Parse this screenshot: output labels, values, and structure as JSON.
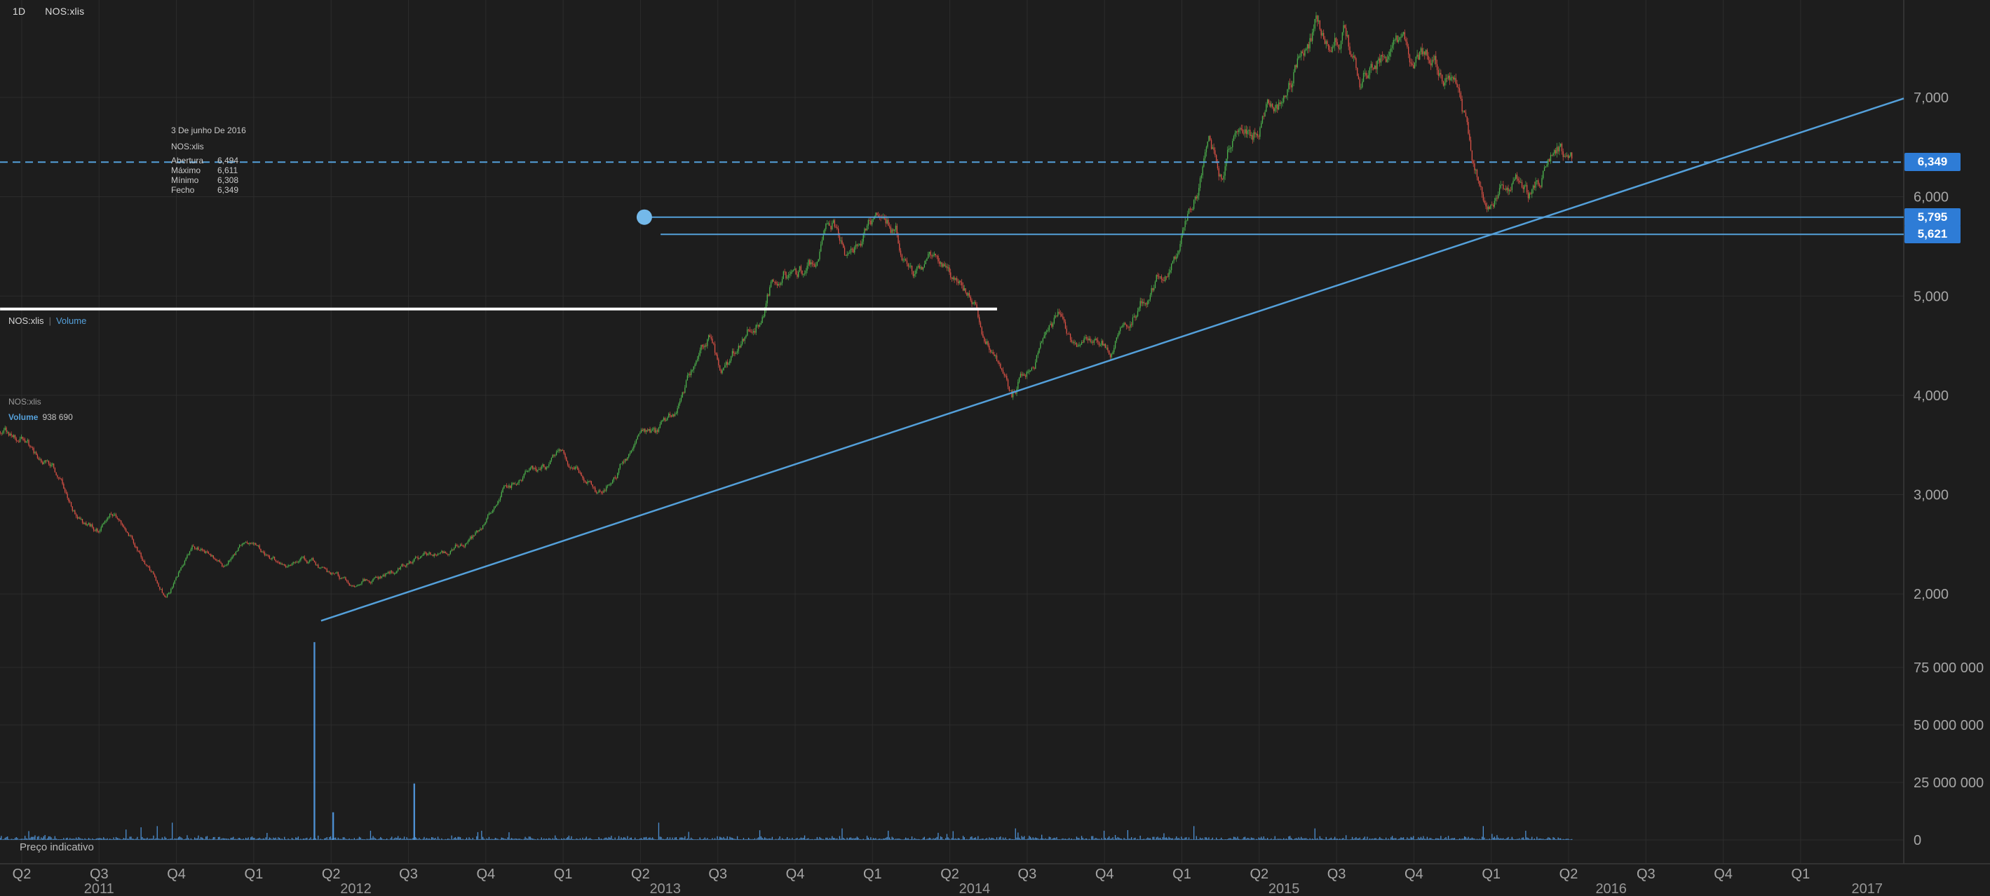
{
  "header": {
    "timeframe": "1D",
    "symbol": "NOS:xlis"
  },
  "tooltip": {
    "date": "3 De junho De 2016",
    "symbol": "NOS:xlis",
    "rows": [
      {
        "label": "Abertura",
        "value": "6,494"
      },
      {
        "label": "Máximo",
        "value": "6,611"
      },
      {
        "label": "Mínimo",
        "value": "6,308"
      },
      {
        "label": "Fecho",
        "value": "6,349"
      }
    ]
  },
  "pane_legend": {
    "symbol": "NOS:xlis",
    "separator": "|",
    "volume": "Volume"
  },
  "volume_legend": {
    "symbol": "NOS:xlis",
    "label": "Volume",
    "value": "938 690"
  },
  "footer_note": "Preço indicativo",
  "colors": {
    "background": "#1d1d1d",
    "grid": "#2c2c2c",
    "axis_line": "#3a3a3a",
    "axis_text": "#a6a6a6",
    "up": "#4db34d",
    "down": "#de5246",
    "volume_bar": "#4d8fd1",
    "blue_line": "#54a0da",
    "handle": "#74b9ea",
    "badge": "#2e7cd6",
    "white_line": "#ffffff"
  },
  "price_axis": {
    "ticks": [
      {
        "value": 7000,
        "label": "7,000"
      },
      {
        "value": 6000,
        "label": "6,000"
      },
      {
        "value": 5000,
        "label": "5,000"
      },
      {
        "value": 4000,
        "label": "4,000"
      },
      {
        "value": 3000,
        "label": "3,000"
      },
      {
        "value": 2000,
        "label": "2,000"
      }
    ],
    "badges": [
      {
        "price": 6349,
        "label": "6,349",
        "style": "current-dashed"
      },
      {
        "price": 5795,
        "label": "5,795",
        "style": "line"
      },
      {
        "price": 5621,
        "label": "5,621",
        "style": "line"
      }
    ]
  },
  "volume_axis": {
    "ticks": [
      {
        "value": 75000000,
        "label": "75 000 000"
      },
      {
        "value": 50000000,
        "label": "50 000 000"
      },
      {
        "value": 25000000,
        "label": "25 000 000"
      },
      {
        "value": 0,
        "label": "0"
      }
    ]
  },
  "time_axis": {
    "quarters": [
      {
        "q": 0,
        "label": "Q2"
      },
      {
        "q": 1,
        "label": "Q3"
      },
      {
        "q": 2,
        "label": "Q4"
      },
      {
        "q": 3,
        "label": "Q1"
      },
      {
        "q": 4,
        "label": "Q2"
      },
      {
        "q": 5,
        "label": "Q3"
      },
      {
        "q": 6,
        "label": "Q4"
      },
      {
        "q": 7,
        "label": "Q1"
      },
      {
        "q": 8,
        "label": "Q2"
      },
      {
        "q": 9,
        "label": "Q3"
      },
      {
        "q": 10,
        "label": "Q4"
      },
      {
        "q": 11,
        "label": "Q1"
      },
      {
        "q": 12,
        "label": "Q2"
      },
      {
        "q": 13,
        "label": "Q3"
      },
      {
        "q": 14,
        "label": "Q4"
      },
      {
        "q": 15,
        "label": "Q1"
      },
      {
        "q": 16,
        "label": "Q2"
      },
      {
        "q": 17,
        "label": "Q3"
      },
      {
        "q": 18,
        "label": "Q4"
      },
      {
        "q": 19,
        "label": "Q1"
      },
      {
        "q": 20,
        "label": "Q2"
      },
      {
        "q": 21,
        "label": "Q3"
      },
      {
        "q": 22,
        "label": "Q4"
      },
      {
        "q": 23,
        "label": "Q1"
      }
    ],
    "years": [
      {
        "q": 1.0,
        "label": "2011"
      },
      {
        "q": 4.32,
        "label": "2012"
      },
      {
        "q": 8.32,
        "label": "2013"
      },
      {
        "q": 12.32,
        "label": "2014"
      },
      {
        "q": 16.32,
        "label": "2015"
      },
      {
        "q": 20.55,
        "label": "2016"
      },
      {
        "q": 23.86,
        "label": "2017"
      }
    ]
  },
  "chart_data": {
    "type": "candlestick",
    "symbol": "NOS:xlis",
    "interval": "1D",
    "note": "Prices are EUR with comma as decimal separator; internal values are price x 1000 (e.g. 6349 = 6,349). x unit is quarter index, 0 = Q2 2011 tick.",
    "visible_price_range": [
      1800,
      7985
    ],
    "last_candle": {
      "date": "3 De junho De 2016",
      "open": 6494,
      "high": 6611,
      "low": 6308,
      "close": 6349,
      "volume": 938690
    },
    "price_anchors": [
      [
        -0.28,
        3640
      ],
      [
        0,
        3560
      ],
      [
        0.2,
        3350
      ],
      [
        0.4,
        3300
      ],
      [
        0.6,
        2950
      ],
      [
        0.8,
        2700
      ],
      [
        1.0,
        2620
      ],
      [
        1.15,
        2820
      ],
      [
        1.4,
        2580
      ],
      [
        1.6,
        2300
      ],
      [
        1.85,
        2000
      ],
      [
        1.95,
        2100
      ],
      [
        2.2,
        2480
      ],
      [
        2.4,
        2420
      ],
      [
        2.6,
        2270
      ],
      [
        2.8,
        2450
      ],
      [
        3.0,
        2530
      ],
      [
        3.2,
        2350
      ],
      [
        3.4,
        2280
      ],
      [
        3.6,
        2350
      ],
      [
        3.8,
        2290
      ],
      [
        4.0,
        2180
      ],
      [
        4.3,
        2030
      ],
      [
        4.55,
        2160
      ],
      [
        4.8,
        2230
      ],
      [
        5.1,
        2350
      ],
      [
        5.45,
        2400
      ],
      [
        5.7,
        2520
      ],
      [
        5.95,
        2650
      ],
      [
        6.2,
        3050
      ],
      [
        6.5,
        3180
      ],
      [
        6.8,
        3300
      ],
      [
        6.95,
        3420
      ],
      [
        7.2,
        3300
      ],
      [
        7.45,
        3050
      ],
      [
        7.6,
        3180
      ],
      [
        7.85,
        3440
      ],
      [
        8.0,
        3740
      ],
      [
        8.2,
        3620
      ],
      [
        8.45,
        3760
      ],
      [
        8.6,
        4100
      ],
      [
        8.9,
        4550
      ],
      [
        9.05,
        4200
      ],
      [
        9.3,
        4500
      ],
      [
        9.55,
        4850
      ],
      [
        9.7,
        5150
      ],
      [
        9.85,
        5280
      ],
      [
        10.0,
        5100
      ],
      [
        10.2,
        5300
      ],
      [
        10.48,
        5680
      ],
      [
        10.7,
        5300
      ],
      [
        11.05,
        5750
      ],
      [
        11.3,
        5600
      ],
      [
        11.55,
        5150
      ],
      [
        11.8,
        5300
      ],
      [
        12.0,
        5200
      ],
      [
        12.3,
        4850
      ],
      [
        12.55,
        4450
      ],
      [
        12.8,
        3980
      ],
      [
        13.0,
        4300
      ],
      [
        13.2,
        4550
      ],
      [
        13.45,
        4840
      ],
      [
        13.65,
        4480
      ],
      [
        13.9,
        4650
      ],
      [
        14.1,
        4500
      ],
      [
        14.4,
        4900
      ],
      [
        14.7,
        5200
      ],
      [
        14.95,
        5500
      ],
      [
        15.2,
        6100
      ],
      [
        15.35,
        6750
      ],
      [
        15.5,
        6350
      ],
      [
        15.7,
        6650
      ],
      [
        15.9,
        6500
      ],
      [
        16.1,
        6950
      ],
      [
        16.3,
        7050
      ],
      [
        16.5,
        7400
      ],
      [
        16.75,
        7750
      ],
      [
        16.95,
        7550
      ],
      [
        17.1,
        7650
      ],
      [
        17.3,
        7200
      ],
      [
        17.55,
        7500
      ],
      [
        17.75,
        7600
      ],
      [
        17.95,
        7400
      ],
      [
        18.15,
        7550
      ],
      [
        18.4,
        7300
      ],
      [
        18.6,
        6900
      ],
      [
        18.8,
        6300
      ],
      [
        18.95,
        5750
      ],
      [
        19.1,
        6000
      ],
      [
        19.3,
        6150
      ],
      [
        19.5,
        6000
      ],
      [
        19.7,
        6250
      ],
      [
        19.9,
        6450
      ],
      [
        20.05,
        6349
      ]
    ],
    "volume_spikes": [
      [
        1.35,
        4500000
      ],
      [
        1.55,
        5500000
      ],
      [
        1.75,
        6000000
      ],
      [
        1.95,
        7500000
      ],
      [
        3.79,
        86000000
      ],
      [
        4.02,
        12000000
      ],
      [
        4.51,
        4000000
      ],
      [
        5.07,
        24500000
      ],
      [
        5.95,
        4000000
      ],
      [
        8.24,
        7500000
      ],
      [
        8.62,
        3500000
      ],
      [
        9.54,
        4200000
      ],
      [
        10.6,
        5000000
      ],
      [
        11.2,
        4000000
      ],
      [
        12.05,
        3800000
      ],
      [
        12.85,
        5000000
      ],
      [
        14.0,
        4000000
      ],
      [
        15.15,
        6000000
      ],
      [
        16.72,
        5000000
      ],
      [
        18.9,
        6000000
      ],
      [
        19.45,
        4000000
      ]
    ],
    "drawings": {
      "trend_line": {
        "from": [
          3.87,
          1730
        ],
        "to": [
          24.35,
          6990
        ]
      },
      "horizontal_lines": [
        {
          "price": 5795,
          "from_q": 8.05,
          "handle": true
        },
        {
          "price": 5621,
          "from_q": 8.26,
          "handle": false
        }
      ],
      "white_line": {
        "price": 4870,
        "from_q": -0.28,
        "to_q": 12.61
      },
      "current_price_line": {
        "price": 6349,
        "style": "dashed"
      }
    }
  }
}
